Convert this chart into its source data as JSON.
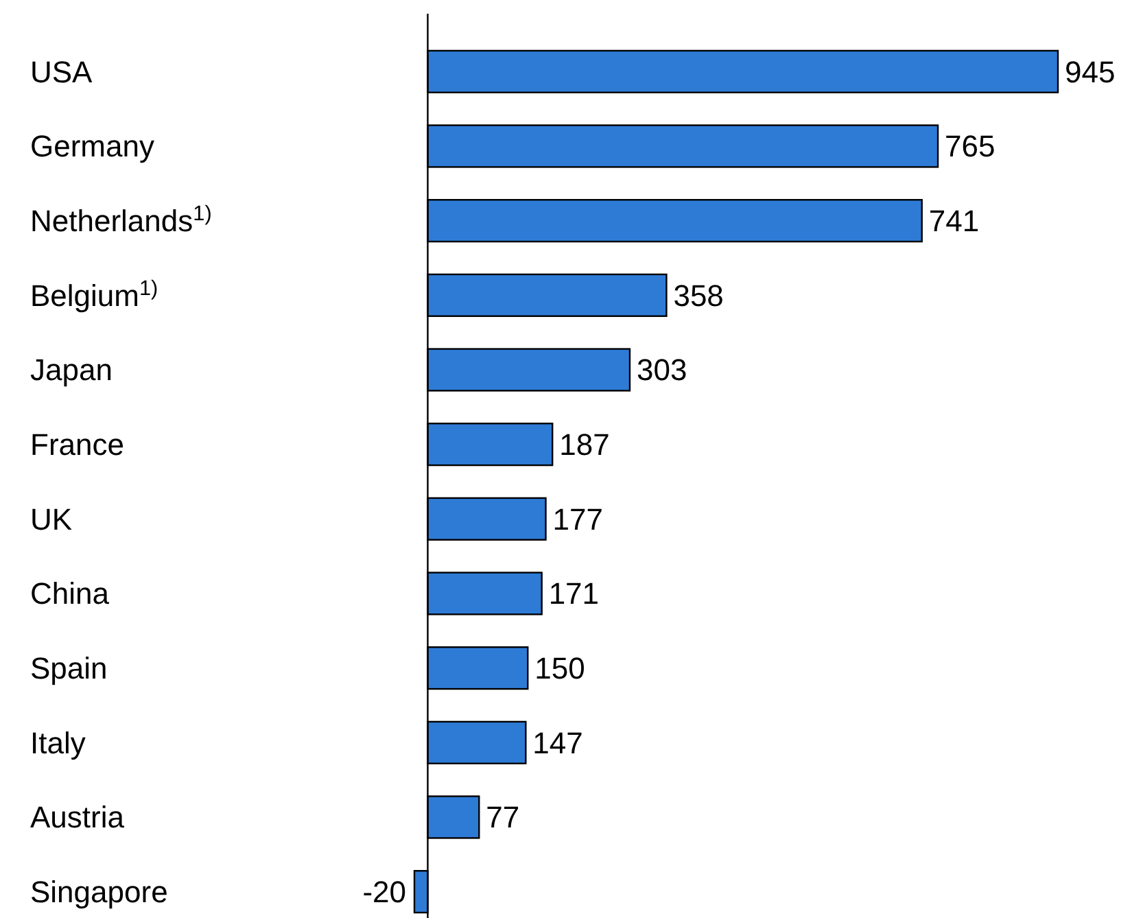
{
  "chart_data": {
    "type": "bar",
    "orientation": "horizontal",
    "categories": [
      "USA",
      "Germany",
      "Netherlands$^{1)}$",
      "Belgium$^{1)}$",
      "Japan",
      "France",
      "UK",
      "China",
      "Spain",
      "Italy",
      "Austria",
      "Singapore"
    ],
    "values": [
      945,
      765,
      741,
      358,
      303,
      187,
      177,
      171,
      150,
      147,
      77,
      -20
    ],
    "color": "#2e7bd6",
    "xlim": [
      -20,
      945
    ],
    "data_labels": true,
    "tick_labels": "y"
  }
}
